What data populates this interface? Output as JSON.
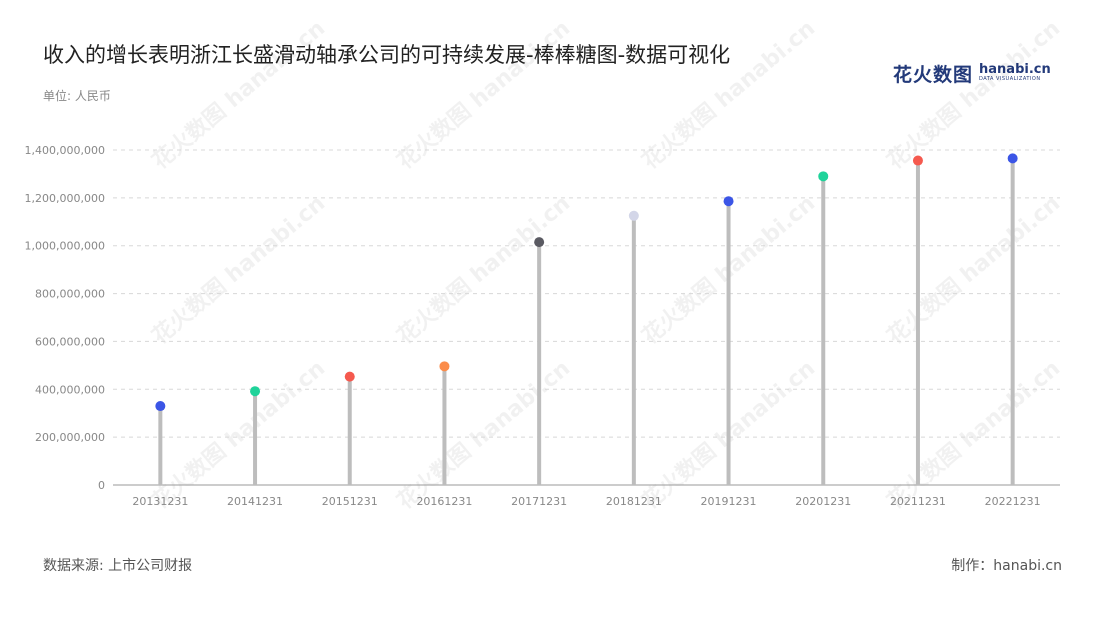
{
  "header": {
    "title": "收入的增长表明浙江长盛滑动轴承公司的可持续发展-棒棒糖图-数据可视化",
    "unit": "单位: 人民币"
  },
  "logo": {
    "cn": "花火数图",
    "latin": "hanabi.cn",
    "sub": "DATA VISUALIZATION"
  },
  "footer": {
    "source": "数据来源: 上市公司财报",
    "credit": "制作：hanabi.cn"
  },
  "watermark": "花火数图 hanabi.cn",
  "chart_data": {
    "type": "lollipop",
    "title": "收入的增长表明浙江长盛滑动轴承公司的可持续发展-棒棒糖图-数据可视化",
    "ylabel": "单位: 人民币",
    "categories": [
      "20131231",
      "20141231",
      "20151231",
      "20161231",
      "20171231",
      "20181231",
      "20191231",
      "20201231",
      "20211231",
      "20221231"
    ],
    "values": [
      330000000,
      392000000,
      453000000,
      496000000,
      1015000000,
      1125000000,
      1186000000,
      1290000000,
      1356000000,
      1365000000
    ],
    "colors": [
      "#3b55e6",
      "#1fd39a",
      "#f5594e",
      "#fb8c4a",
      "#5a5a62",
      "#d3d6e8",
      "#3b55e6",
      "#1fd39a",
      "#f5594e",
      "#3b55e6"
    ],
    "ylim": [
      0,
      1400000000
    ],
    "yticks": [
      0,
      200000000,
      400000000,
      600000000,
      800000000,
      1000000000,
      1200000000,
      1400000000
    ],
    "grid": true,
    "stem_color": "#bdbdbd"
  }
}
